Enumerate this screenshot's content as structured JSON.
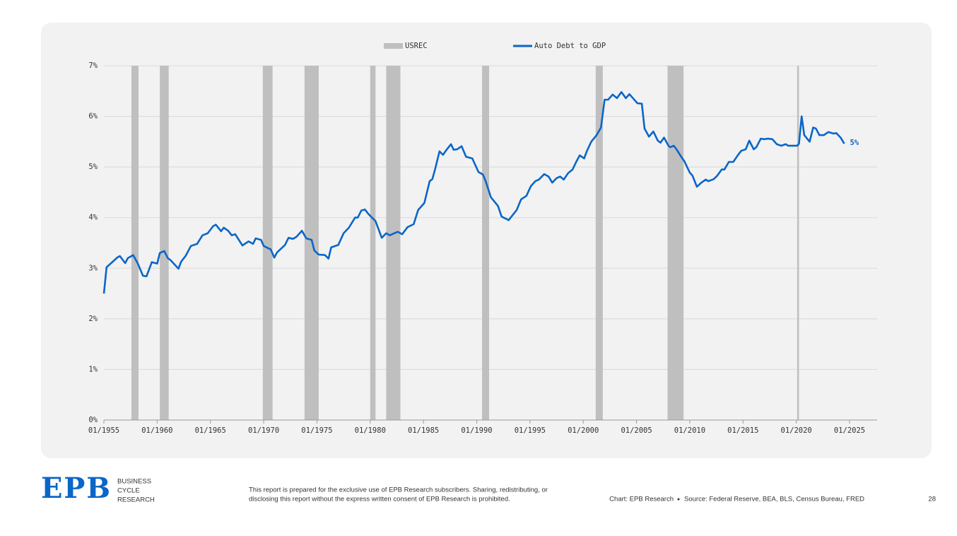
{
  "chart_data": {
    "type": "line",
    "xlim": [
      "1955-01",
      "2027-08"
    ],
    "xticks": [
      {
        "value": "1955-01",
        "label": "01/1955"
      },
      {
        "value": "1960-01",
        "label": "01/1960"
      },
      {
        "value": "1965-01",
        "label": "01/1965"
      },
      {
        "value": "1970-01",
        "label": "01/1970"
      },
      {
        "value": "1975-01",
        "label": "01/1975"
      },
      {
        "value": "1980-01",
        "label": "01/1980"
      },
      {
        "value": "1985-01",
        "label": "01/1985"
      },
      {
        "value": "1990-01",
        "label": "01/1990"
      },
      {
        "value": "1995-01",
        "label": "01/1995"
      },
      {
        "value": "2000-01",
        "label": "01/2000"
      },
      {
        "value": "2005-01",
        "label": "01/2005"
      },
      {
        "value": "2010-01",
        "label": "01/2010"
      },
      {
        "value": "2015-01",
        "label": "01/2015"
      },
      {
        "value": "2020-01",
        "label": "01/2020"
      },
      {
        "value": "2025-01",
        "label": "01/2025"
      }
    ],
    "ylim": [
      0,
      7
    ],
    "yticks": [
      {
        "value": 0,
        "label": "0%"
      },
      {
        "value": 1,
        "label": "1%"
      },
      {
        "value": 2,
        "label": "2%"
      },
      {
        "value": 3,
        "label": "3%"
      },
      {
        "value": 4,
        "label": "4%"
      },
      {
        "value": 5,
        "label": "5%"
      },
      {
        "value": 6,
        "label": "6%"
      },
      {
        "value": 7,
        "label": "7%"
      }
    ],
    "grid": true,
    "annotation": "5%",
    "x": [
      "1955-01",
      "1955-04",
      "1955-11",
      "1956-04",
      "1956-07",
      "1957-01",
      "1957-04",
      "1957-10",
      "1958-03",
      "1958-09",
      "1959-01",
      "1959-07",
      "1960-01",
      "1960-04",
      "1960-09",
      "1961-01",
      "1961-04",
      "1962-01",
      "1962-04",
      "1962-09",
      "1963-03",
      "1963-10",
      "1964-04",
      "1964-10",
      "1965-04",
      "1965-07",
      "1966-01",
      "1966-04",
      "1966-09",
      "1967-01",
      "1967-05",
      "1968-01",
      "1968-08",
      "1969-01",
      "1969-04",
      "1969-10",
      "1970-01",
      "1970-09",
      "1971-01",
      "1971-04",
      "1972-01",
      "1972-05",
      "1972-10",
      "1973-02",
      "1973-08",
      "1974-01",
      "1974-07",
      "1974-10",
      "1975-03",
      "1975-10",
      "1976-02",
      "1976-05",
      "1977-01",
      "1977-07",
      "1978-01",
      "1978-08",
      "1978-11",
      "1979-03",
      "1979-07",
      "1979-11",
      "1980-07",
      "1981-02",
      "1981-07",
      "1981-11",
      "1982-04",
      "1982-08",
      "1983-01",
      "1983-07",
      "1984-02",
      "1984-07",
      "1985-02",
      "1985-08",
      "1985-11",
      "1986-02",
      "1986-07",
      "1986-11",
      "1987-03",
      "1987-08",
      "1987-11",
      "1988-03",
      "1988-08",
      "1989-01",
      "1989-08",
      "1990-03",
      "1990-08",
      "1990-11",
      "1991-05",
      "1992-01",
      "1992-05",
      "1993-01",
      "1993-05",
      "1993-10",
      "1994-03",
      "1994-09",
      "1995-02",
      "1995-07",
      "1995-11",
      "1996-05",
      "1996-10",
      "1997-02",
      "1997-07",
      "1997-11",
      "1998-03",
      "1998-08",
      "1999-01",
      "1999-05",
      "1999-09",
      "2000-02",
      "2000-05",
      "2000-10",
      "2001-04",
      "2001-09",
      "2002-01",
      "2002-05",
      "2002-10",
      "2003-03",
      "2003-08",
      "2004-01",
      "2004-05",
      "2004-09",
      "2005-02",
      "2005-07",
      "2005-10",
      "2006-03",
      "2006-08",
      "2007-01",
      "2007-04",
      "2007-08",
      "2008-01",
      "2008-03",
      "2008-07",
      "2008-10",
      "2009-03",
      "2009-07",
      "2010-01",
      "2010-04",
      "2010-09",
      "2011-02",
      "2011-07",
      "2011-10",
      "2012-04",
      "2012-08",
      "2013-01",
      "2013-04",
      "2013-09",
      "2014-02",
      "2014-07",
      "2014-11",
      "2015-04",
      "2015-08",
      "2016-01",
      "2016-04",
      "2016-09",
      "2017-01",
      "2017-05",
      "2017-10",
      "2018-03",
      "2018-08",
      "2019-01",
      "2019-04",
      "2019-09",
      "2020-02",
      "2020-04",
      "2020-07",
      "2020-10",
      "2021-04",
      "2021-08",
      "2021-11",
      "2022-03",
      "2022-08",
      "2023-01",
      "2023-07",
      "2023-10",
      "2024-03",
      "2024-07"
    ],
    "series": [
      {
        "name": "USREC",
        "color": "#bfbfbf",
        "periods": [
          [
            "1957-08",
            "1958-04"
          ],
          [
            "1960-04",
            "1961-02"
          ],
          [
            "1969-12",
            "1970-11"
          ],
          [
            "1973-11",
            "1975-03"
          ],
          [
            "1980-01",
            "1980-07"
          ],
          [
            "1981-07",
            "1982-11"
          ],
          [
            "1990-07",
            "1991-03"
          ],
          [
            "2001-03",
            "2001-11"
          ],
          [
            "2007-12",
            "2009-06"
          ],
          [
            "2020-02",
            "2020-04"
          ]
        ]
      },
      {
        "name": "Auto Debt to GDP",
        "color": "#0a66c8",
        "values": [
          2.5,
          3.02,
          3.13,
          3.21,
          3.24,
          3.1,
          3.2,
          3.26,
          3.1,
          2.85,
          2.84,
          3.12,
          3.09,
          3.3,
          3.34,
          3.2,
          3.16,
          2.99,
          3.13,
          3.24,
          3.44,
          3.48,
          3.65,
          3.69,
          3.83,
          3.86,
          3.73,
          3.8,
          3.74,
          3.65,
          3.67,
          3.45,
          3.53,
          3.48,
          3.59,
          3.56,
          3.44,
          3.37,
          3.21,
          3.31,
          3.46,
          3.6,
          3.58,
          3.62,
          3.74,
          3.59,
          3.56,
          3.35,
          3.27,
          3.26,
          3.19,
          3.41,
          3.46,
          3.69,
          3.8,
          4.0,
          4.0,
          4.14,
          4.16,
          4.07,
          3.93,
          3.6,
          3.69,
          3.65,
          3.69,
          3.72,
          3.67,
          3.81,
          3.87,
          4.15,
          4.29,
          4.72,
          4.76,
          4.95,
          5.31,
          5.24,
          5.34,
          5.45,
          5.34,
          5.35,
          5.41,
          5.2,
          5.17,
          4.9,
          4.85,
          4.72,
          4.4,
          4.23,
          4.02,
          3.95,
          4.04,
          4.15,
          4.36,
          4.43,
          4.62,
          4.72,
          4.75,
          4.86,
          4.81,
          4.69,
          4.78,
          4.81,
          4.75,
          4.88,
          4.95,
          5.1,
          5.23,
          5.17,
          5.31,
          5.5,
          5.63,
          5.78,
          6.33,
          6.33,
          6.43,
          6.36,
          6.48,
          6.36,
          6.44,
          6.36,
          6.26,
          6.25,
          5.76,
          5.6,
          5.7,
          5.52,
          5.48,
          5.58,
          5.42,
          5.39,
          5.42,
          5.35,
          5.21,
          5.11,
          4.89,
          4.83,
          4.61,
          4.69,
          4.75,
          4.72,
          4.76,
          4.83,
          4.95,
          4.95,
          5.1,
          5.1,
          5.23,
          5.32,
          5.35,
          5.52,
          5.35,
          5.39,
          5.56,
          5.55,
          5.56,
          5.55,
          5.45,
          5.42,
          5.45,
          5.42,
          5.42,
          5.42,
          5.46,
          6.0,
          5.63,
          5.5,
          5.78,
          5.76,
          5.63,
          5.63,
          5.69,
          5.66,
          5.67,
          5.58,
          5.46
        ]
      }
    ]
  },
  "footer": {
    "logo": "EPB",
    "tagline": [
      "BUSINESS",
      "CYCLE",
      "RESEARCH"
    ],
    "disclaimer": [
      "This report is prepared for the exclusive use of EPB Research subscribers. Sharing, redistributing, or",
      "disclosing this report without the express written consent of EPB Research is prohibited."
    ],
    "credit": "Chart: EPB Research",
    "source": "Source: Federal Reserve, BEA, BLS, Census Bureau, FRED",
    "page": "28"
  }
}
